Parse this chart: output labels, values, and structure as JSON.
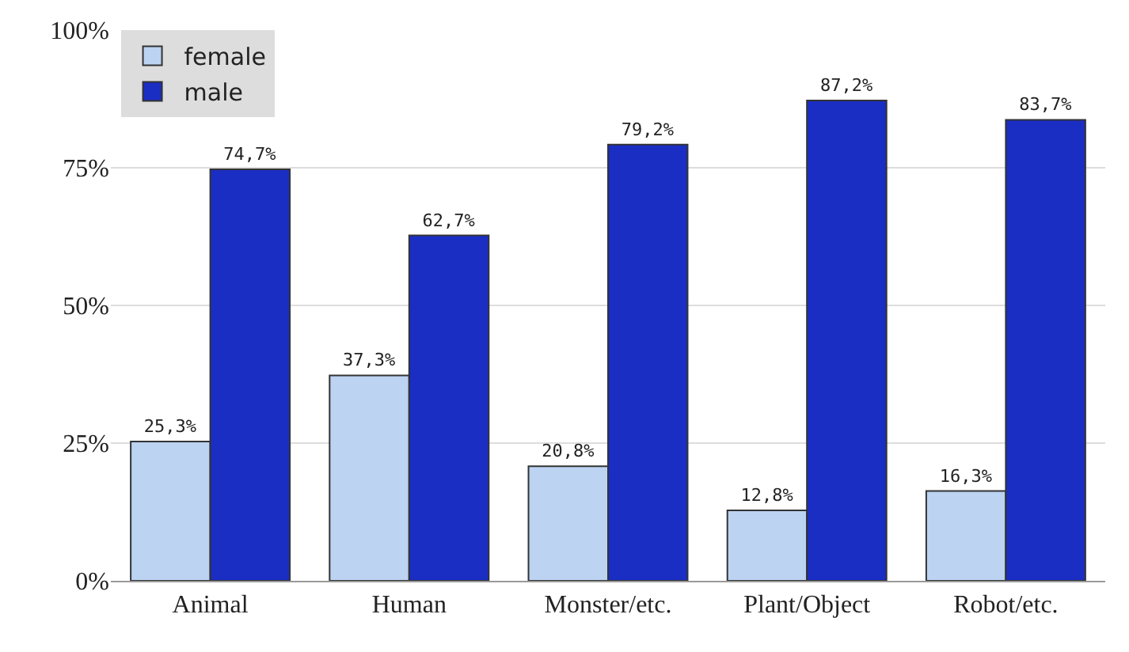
{
  "chart_data": {
    "type": "bar",
    "categories": [
      "Animal",
      "Human",
      "Monster/etc.",
      "Plant/Object",
      "Robot/etc."
    ],
    "series": [
      {
        "name": "female",
        "color": "#bcd3f2",
        "values": [
          25.3,
          37.3,
          20.8,
          12.8,
          16.3
        ],
        "value_labels": [
          "25,3%",
          "37,3%",
          "20,8%",
          "12,8%",
          "16,3%"
        ]
      },
      {
        "name": "male",
        "color": "#1a2ec4",
        "values": [
          74.7,
          62.7,
          79.2,
          87.2,
          83.7
        ],
        "value_labels": [
          "74,7%",
          "62,7%",
          "79,2%",
          "87,2%",
          "83,7%"
        ]
      }
    ],
    "ylim": [
      0,
      100
    ],
    "yticks": [
      {
        "value": 0,
        "label": "0%"
      },
      {
        "value": 25,
        "label": "25%"
      },
      {
        "value": 50,
        "label": "50%"
      },
      {
        "value": 75,
        "label": "75%"
      },
      {
        "value": 100,
        "label": "100%"
      }
    ],
    "grid": "y",
    "legend": "top left"
  }
}
